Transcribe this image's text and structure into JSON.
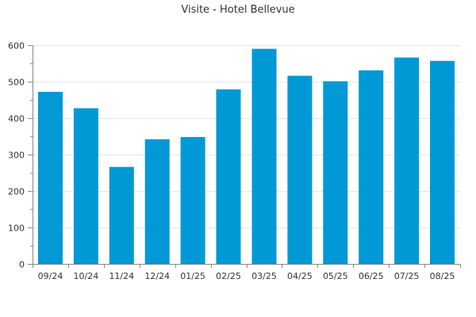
{
  "chart_data": {
    "type": "bar",
    "title": "Visite - Hotel Bellevue",
    "xlabel": "",
    "ylabel": "",
    "categories": [
      "09/24",
      "10/24",
      "11/24",
      "12/24",
      "01/25",
      "02/25",
      "03/25",
      "04/25",
      "05/25",
      "06/25",
      "07/25",
      "08/25"
    ],
    "values": [
      472,
      427,
      266,
      342,
      348,
      479,
      590,
      516,
      501,
      531,
      566,
      557
    ],
    "ylim": [
      0,
      600
    ],
    "yticks": [
      0,
      100,
      200,
      300,
      400,
      500,
      600
    ],
    "yticks_minor": [
      50,
      150,
      250,
      350,
      450,
      550
    ],
    "grid": true,
    "legend": "none",
    "colors": {
      "bar": "#0099d6",
      "grid": "#e6e6e6",
      "axis": "#888888",
      "text": "#333333"
    }
  }
}
